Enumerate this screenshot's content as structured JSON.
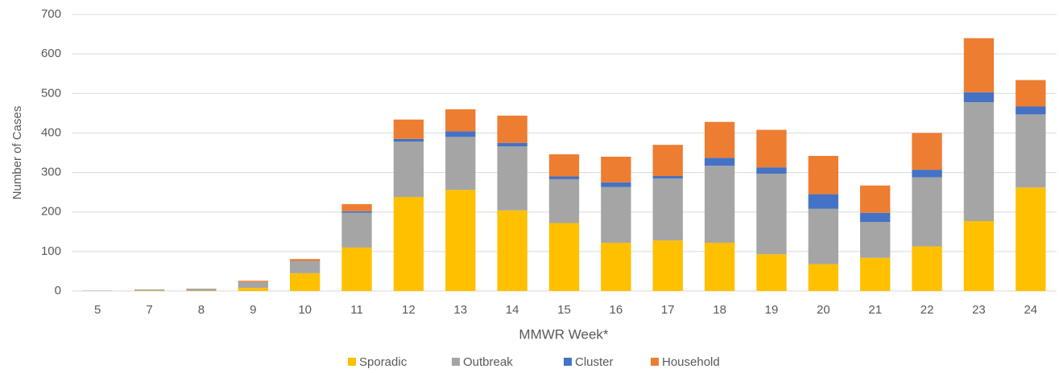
{
  "chart_data": {
    "type": "stacked_bar",
    "x_label": "MMWR Week*",
    "y_label": "Number of Cases",
    "categories": [
      "5",
      "7",
      "8",
      "9",
      "10",
      "11",
      "12",
      "13",
      "14",
      "15",
      "16",
      "17",
      "18",
      "19",
      "20",
      "21",
      "22",
      "23",
      "24"
    ],
    "series": [
      {
        "name": "Sporadic",
        "color": "#ffc000",
        "values": [
          0,
          1,
          1,
          8,
          45,
          110,
          238,
          256,
          204,
          172,
          122,
          128,
          122,
          93,
          68,
          84,
          113,
          177,
          262
        ]
      },
      {
        "name": "Outbreak",
        "color": "#a5a5a5",
        "values": [
          1,
          3,
          5,
          15,
          30,
          88,
          140,
          134,
          162,
          111,
          141,
          157,
          195,
          204,
          140,
          91,
          175,
          301,
          185
        ]
      },
      {
        "name": "Cluster",
        "color": "#4472c4",
        "values": [
          0,
          0,
          0,
          0,
          1,
          4,
          7,
          14,
          9,
          7,
          12,
          6,
          20,
          16,
          37,
          23,
          19,
          25,
          20
        ]
      },
      {
        "name": "Household",
        "color": "#ed7d31",
        "values": [
          0,
          0,
          0,
          3,
          5,
          18,
          49,
          56,
          69,
          56,
          65,
          79,
          91,
          95,
          97,
          69,
          93,
          137,
          67
        ]
      }
    ],
    "ylim": [
      0,
      700
    ],
    "yticks": [
      0,
      100,
      200,
      300,
      400,
      500,
      600,
      700
    ],
    "grid": true,
    "legend": "bottom"
  }
}
